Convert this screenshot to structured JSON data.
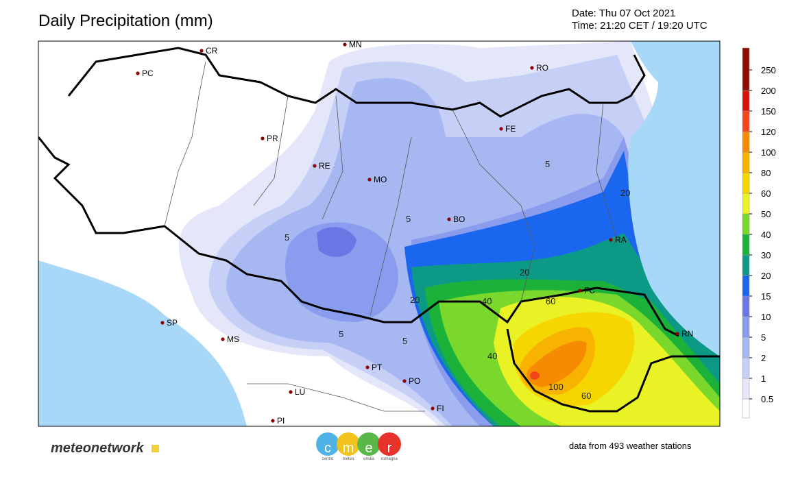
{
  "header": {
    "title": "Daily Precipitation (mm)",
    "date": "Date: Thu 07 Oct 2021",
    "time": "Time: 21:20 CET / 19:20 UTC"
  },
  "map": {
    "cities": [
      "CR",
      "MN",
      "PC",
      "RO",
      "PR",
      "FE",
      "RE",
      "MO",
      "BO",
      "RA",
      "FC",
      "SP",
      "MS",
      "RN",
      "PT",
      "PO",
      "LU",
      "FI",
      "PI"
    ],
    "contour_labels": [
      "5",
      "5",
      "5",
      "5",
      "5",
      "20",
      "20",
      "20",
      "40",
      "40",
      "60",
      "60",
      "100"
    ]
  },
  "legend": {
    "levels": [
      "0.5",
      "1",
      "2",
      "5",
      "10",
      "15",
      "20",
      "30",
      "40",
      "50",
      "60",
      "80",
      "100",
      "120",
      "150",
      "200",
      "250"
    ],
    "colors": [
      "#ffffff",
      "#e4e6fa",
      "#c6cff6",
      "#a7b7f2",
      "#8a9cee",
      "#6c76e4",
      "#1a66ee",
      "#0c9a86",
      "#1cb23a",
      "#7ad82c",
      "#e8f224",
      "#f6d600",
      "#f8b200",
      "#f68a00",
      "#f4461a",
      "#d81408",
      "#8c0e04"
    ]
  },
  "footer": {
    "brand": "meteonetwork",
    "logo_letters": [
      "c",
      "m",
      "e",
      "r"
    ],
    "logo_words": [
      "centro",
      "meteo",
      "emilia",
      "romagna"
    ],
    "note": "data from 493 weather stations"
  }
}
